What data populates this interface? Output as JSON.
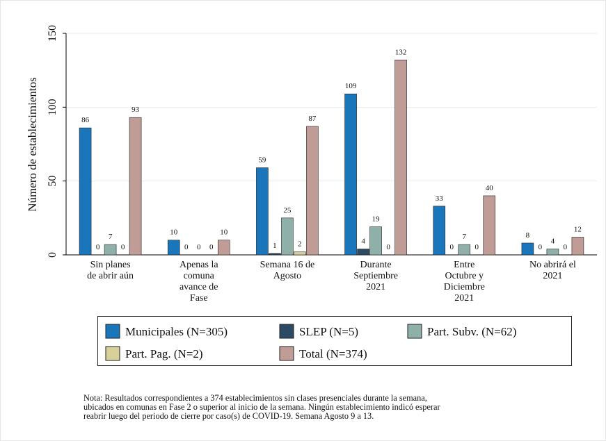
{
  "chart_data": {
    "type": "bar",
    "y_label": "Número de establecimientos",
    "categories": [
      "Sin planes\nde abrir aún",
      "Apenas la\ncomuna\navance de\nFase",
      "Semana 16 de\nAgosto",
      "Durante\nSeptiembre\n2021",
      "Entre\nOctubre y\nDiciembre\n2021",
      "No abrirá el\n2021"
    ],
    "series": [
      {
        "name": "Municipales (N=305)",
        "color": "#1a76bb",
        "values": [
          86,
          10,
          59,
          109,
          33,
          8
        ]
      },
      {
        "name": "SLEP (N=5)",
        "color": "#2c4a63",
        "values": [
          0,
          0,
          1,
          4,
          0,
          0
        ]
      },
      {
        "name": "Part. Subv. (N=62)",
        "color": "#8fb0a8",
        "values": [
          7,
          0,
          25,
          19,
          7,
          4
        ]
      },
      {
        "name": "Part. Pag. (N=2)",
        "color": "#d8d09a",
        "values": [
          0,
          0,
          2,
          0,
          0,
          0
        ]
      },
      {
        "name": "Total (N=374)",
        "color": "#c09c97",
        "values": [
          93,
          10,
          87,
          132,
          40,
          12
        ]
      }
    ],
    "ylim": [
      0,
      150
    ],
    "yticks": [
      0,
      50,
      100,
      150
    ],
    "grid": true,
    "note": [
      "Nota: Resultados correspondientes a 374 establecimientos sin clases presenciales durante la semana,",
      "ubicados en comunas en Fase 2 o superior al inicio de la semana. Ningún establecimiento indicó esperar",
      "reabrir luego del periodo de cierre por caso(s) de COVID-19. Semana Agosto 9 a 13."
    ]
  }
}
